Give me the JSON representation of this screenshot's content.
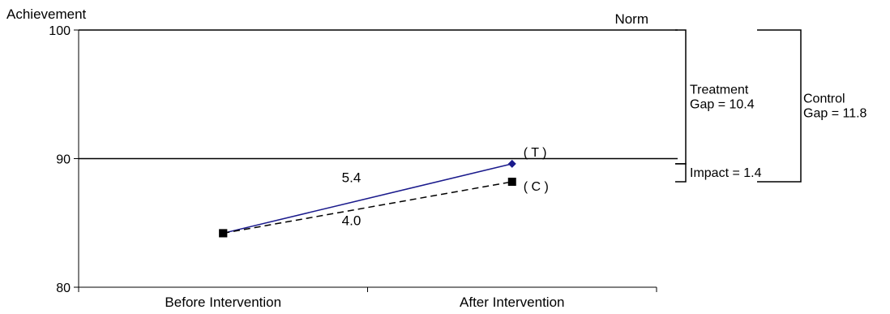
{
  "chart_data": {
    "type": "line",
    "ylabel": "Achievement",
    "ylim": [
      80,
      100
    ],
    "yticks": [
      80,
      90,
      100
    ],
    "categories": [
      "Before Intervention",
      "After Intervention"
    ],
    "grid": false,
    "series": [
      {
        "marker_label": "( T )",
        "values": [
          84.2,
          89.6
        ],
        "line_style": "solid",
        "color": "#1a1a8c",
        "marker": "diamond",
        "change_label": "5.4"
      },
      {
        "marker_label": "( C )",
        "values": [
          84.2,
          88.2
        ],
        "line_style": "dashed",
        "color": "#000000",
        "marker": "square",
        "change_label": "4.0"
      }
    ],
    "reference_lines": [
      {
        "y": 100,
        "label": "Norm"
      },
      {
        "y": 90,
        "label": ""
      }
    ],
    "brackets": [
      {
        "y_top": 100,
        "y_bottom": 89.6,
        "label_lines": [
          "Treatment",
          "Gap = 10.4"
        ]
      },
      {
        "y_top": 89.6,
        "y_bottom": 88.2,
        "label_lines": [
          "Impact = 1.4"
        ]
      },
      {
        "y_top": 100,
        "y_bottom": 88.2,
        "label_lines": [
          "Control",
          "Gap = 11.8"
        ]
      }
    ]
  }
}
